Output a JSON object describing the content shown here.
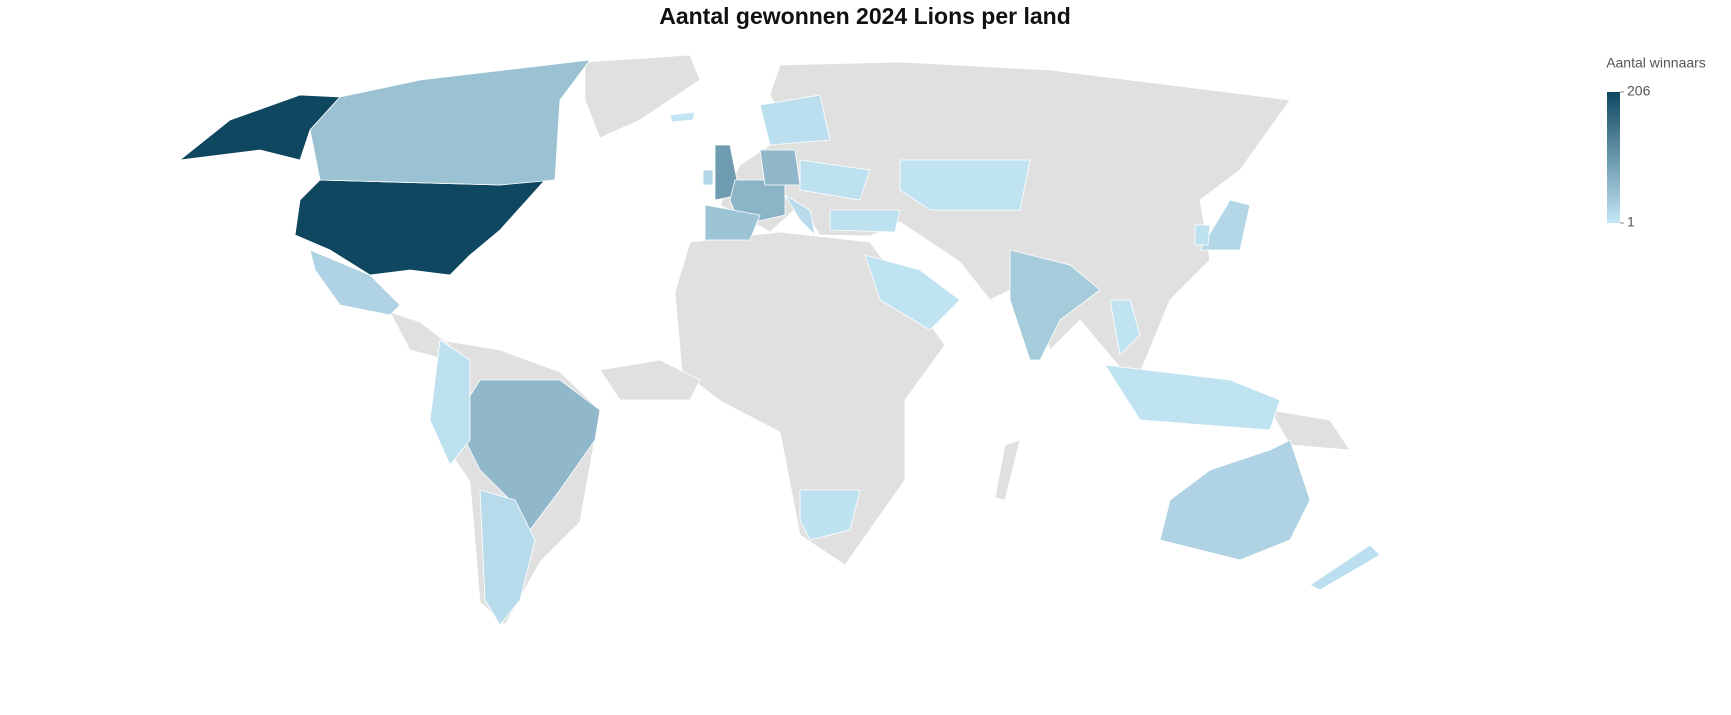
{
  "chart_data": {
    "type": "choropleth",
    "title": "Aantal gewonnen 2024 Lions per land",
    "values": [
      206,
      206,
      48,
      25,
      60,
      15,
      8,
      97,
      20,
      65,
      45,
      60,
      15,
      10,
      8,
      8,
      5,
      5,
      35,
      5,
      20,
      8,
      5,
      25,
      10,
      8,
      3
    ],
    "land_color": "#e0e0e0",
    "border_color": "#ffffff",
    "colorbar": {
      "title": "Aantal winnaars",
      "range": [
        1,
        206
      ],
      "ticks": [
        206,
        1
      ],
      "colors": [
        "#c4e6f5",
        "#0f4761"
      ]
    }
  }
}
